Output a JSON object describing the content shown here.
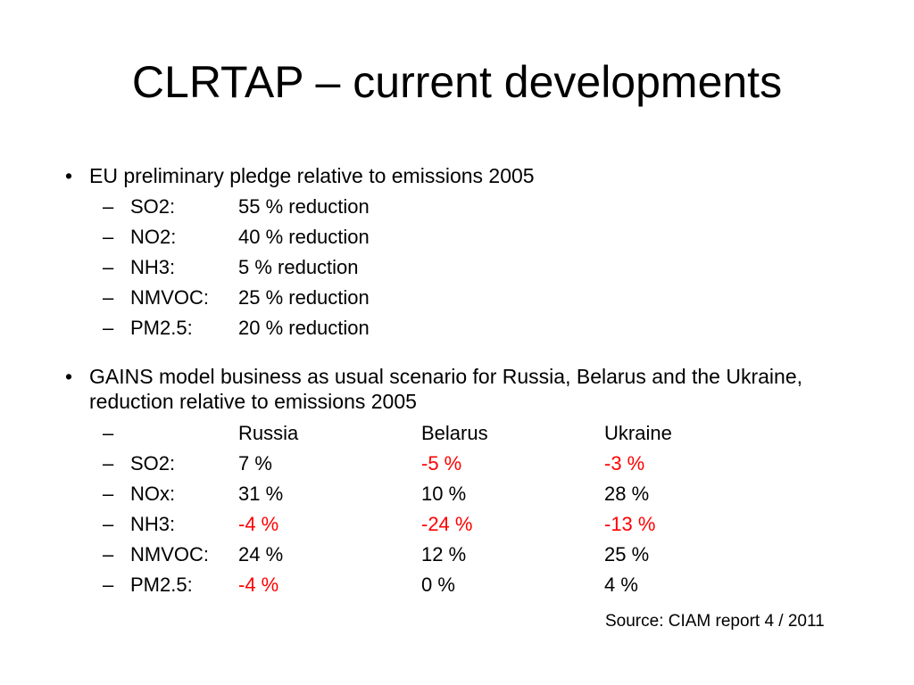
{
  "title": "CLRTAP – current developments",
  "bullet_char": "•",
  "dash_char": "–",
  "colors": {
    "text": "#000000",
    "negative": "#ff0000",
    "background": "#ffffff"
  },
  "section1": {
    "heading": "EU preliminary pledge relative to emissions 2005",
    "items": [
      {
        "label": "SO2:",
        "value": "55 % reduction"
      },
      {
        "label": "NO2:",
        "value": "40 % reduction"
      },
      {
        "label": "NH3:",
        "value": "5 % reduction"
      },
      {
        "label": "NMVOC:",
        "value": "25 % reduction"
      },
      {
        "label": "PM2.5:",
        "value": "20 % reduction"
      }
    ]
  },
  "section2": {
    "heading": "GAINS model business as usual scenario for Russia, Belarus and the Ukraine, reduction relative to emissions 2005",
    "columns": [
      "Russia",
      "Belarus",
      "Ukraine"
    ],
    "rows": [
      {
        "label": "SO2:",
        "values": [
          "7 %",
          "-5 %",
          "-3 %"
        ]
      },
      {
        "label": "NOx:",
        "values": [
          "31 %",
          "10 %",
          "28 %"
        ]
      },
      {
        "label": "NH3:",
        "values": [
          "-4 %",
          "-24 %",
          "-13 %"
        ]
      },
      {
        "label": "NMVOC:",
        "values": [
          "24 %",
          "12 %",
          "25 %"
        ]
      },
      {
        "label": "PM2.5:",
        "values": [
          "-4 %",
          "0 %",
          "4 %"
        ]
      }
    ]
  },
  "source": "Source: CIAM report 4 / 2011"
}
